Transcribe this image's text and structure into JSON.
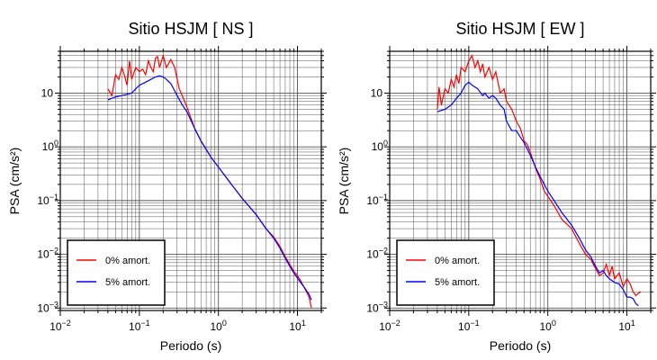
{
  "chart_data": [
    {
      "type": "line",
      "title": "Sitio HSJM [ NS ]",
      "xlabel": "Periodo (s)",
      "ylabel": "PSA (cm/s²)",
      "xscale": "log",
      "yscale": "log",
      "xlim": [
        0.01,
        20
      ],
      "ylim": [
        0.0009,
        60
      ],
      "x_ticks": [
        0.01,
        0.1,
        1,
        10
      ],
      "y_ticks": [
        0.001,
        0.01,
        0.1,
        1,
        10
      ],
      "grid": true,
      "legend_position": "bottom-left",
      "series": [
        {
          "name": "0% amort.",
          "color": "#ff0000",
          "points": [
            [
              0.04,
              12
            ],
            [
              0.045,
              9
            ],
            [
              0.05,
              22
            ],
            [
              0.055,
              18
            ],
            [
              0.06,
              30
            ],
            [
              0.065,
              21
            ],
            [
              0.07,
              14
            ],
            [
              0.075,
              40
            ],
            [
              0.08,
              18
            ],
            [
              0.09,
              30
            ],
            [
              0.1,
              25
            ],
            [
              0.11,
              28
            ],
            [
              0.12,
              22
            ],
            [
              0.13,
              40
            ],
            [
              0.14,
              30
            ],
            [
              0.15,
              25
            ],
            [
              0.16,
              45
            ],
            [
              0.17,
              48
            ],
            [
              0.18,
              30
            ],
            [
              0.2,
              50
            ],
            [
              0.22,
              30
            ],
            [
              0.25,
              42
            ],
            [
              0.28,
              30
            ],
            [
              0.32,
              12
            ],
            [
              0.36,
              8
            ],
            [
              0.4,
              5.5
            ],
            [
              0.5,
              2.2
            ],
            [
              0.6,
              1.3
            ],
            [
              0.8,
              0.65
            ],
            [
              1.0,
              0.42
            ],
            [
              1.5,
              0.19
            ],
            [
              2,
              0.11
            ],
            [
              3,
              0.055
            ],
            [
              4,
              0.03
            ],
            [
              5,
              0.021
            ],
            [
              6,
              0.014
            ],
            [
              7,
              0.009
            ],
            [
              8,
              0.0065
            ],
            [
              9,
              0.0048
            ],
            [
              10,
              0.004
            ],
            [
              11,
              0.0032
            ],
            [
              12,
              0.0025
            ],
            [
              13,
              0.002
            ],
            [
              14,
              0.0016
            ],
            [
              15,
              0.001
            ]
          ]
        },
        {
          "name": "5% amort.",
          "color": "#0000ff",
          "points": [
            [
              0.04,
              7.5
            ],
            [
              0.05,
              8.5
            ],
            [
              0.06,
              9
            ],
            [
              0.07,
              9.5
            ],
            [
              0.08,
              10
            ],
            [
              0.09,
              12
            ],
            [
              0.1,
              14
            ],
            [
              0.12,
              16
            ],
            [
              0.14,
              18
            ],
            [
              0.16,
              20
            ],
            [
              0.18,
              21
            ],
            [
              0.2,
              20
            ],
            [
              0.22,
              18
            ],
            [
              0.25,
              15
            ],
            [
              0.28,
              11
            ],
            [
              0.3,
              9
            ],
            [
              0.35,
              6
            ],
            [
              0.4,
              4.5
            ],
            [
              0.5,
              2.2
            ],
            [
              0.6,
              1.3
            ],
            [
              0.8,
              0.65
            ],
            [
              1.0,
              0.42
            ],
            [
              1.5,
              0.19
            ],
            [
              2,
              0.11
            ],
            [
              3,
              0.055
            ],
            [
              4,
              0.03
            ],
            [
              5,
              0.02
            ],
            [
              6,
              0.013
            ],
            [
              7,
              0.0085
            ],
            [
              8,
              0.006
            ],
            [
              9,
              0.0045
            ],
            [
              10,
              0.0036
            ],
            [
              12,
              0.0025
            ],
            [
              14,
              0.0018
            ],
            [
              15,
              0.0014
            ]
          ]
        }
      ]
    },
    {
      "type": "line",
      "title": "Sitio HSJM [ EW ]",
      "xlabel": "Periodo (s)",
      "ylabel": "PSA (cm/s²)",
      "xscale": "log",
      "yscale": "log",
      "xlim": [
        0.01,
        20
      ],
      "ylim": [
        0.0009,
        60
      ],
      "x_ticks": [
        0.01,
        0.1,
        1,
        10
      ],
      "y_ticks": [
        0.001,
        0.01,
        0.1,
        1,
        10
      ],
      "grid": true,
      "legend_position": "bottom-left",
      "series": [
        {
          "name": "0% amort.",
          "color": "#ff0000",
          "points": [
            [
              0.04,
              5
            ],
            [
              0.042,
              13
            ],
            [
              0.045,
              6
            ],
            [
              0.05,
              12
            ],
            [
              0.055,
              10
            ],
            [
              0.06,
              18
            ],
            [
              0.065,
              13
            ],
            [
              0.07,
              22
            ],
            [
              0.075,
              15
            ],
            [
              0.08,
              30
            ],
            [
              0.09,
              25
            ],
            [
              0.1,
              40
            ],
            [
              0.11,
              50
            ],
            [
              0.12,
              30
            ],
            [
              0.13,
              40
            ],
            [
              0.14,
              25
            ],
            [
              0.15,
              35
            ],
            [
              0.16,
              20
            ],
            [
              0.18,
              30
            ],
            [
              0.2,
              18
            ],
            [
              0.22,
              25
            ],
            [
              0.25,
              10
            ],
            [
              0.28,
              12
            ],
            [
              0.3,
              7
            ],
            [
              0.35,
              5
            ],
            [
              0.4,
              3
            ],
            [
              0.45,
              2.2
            ],
            [
              0.5,
              1.3
            ],
            [
              0.55,
              1.1
            ],
            [
              0.6,
              0.8
            ],
            [
              0.7,
              0.4
            ],
            [
              0.8,
              0.25
            ],
            [
              0.9,
              0.15
            ],
            [
              1.0,
              0.12
            ],
            [
              1.2,
              0.08
            ],
            [
              1.5,
              0.045
            ],
            [
              2,
              0.03
            ],
            [
              2.5,
              0.016
            ],
            [
              3,
              0.01
            ],
            [
              3.5,
              0.008
            ],
            [
              4,
              0.0055
            ],
            [
              4.5,
              0.004
            ],
            [
              5,
              0.0045
            ],
            [
              5.5,
              0.0065
            ],
            [
              6,
              0.004
            ],
            [
              6.5,
              0.006
            ],
            [
              7,
              0.0035
            ],
            [
              8,
              0.0045
            ],
            [
              9,
              0.0025
            ],
            [
              10,
              0.0035
            ],
            [
              11,
              0.0028
            ],
            [
              12,
              0.002
            ],
            [
              13,
              0.0017
            ],
            [
              14,
              0.0019
            ],
            [
              15,
              0.002
            ]
          ]
        },
        {
          "name": "5% amort.",
          "color": "#0000ff",
          "points": [
            [
              0.04,
              4.5
            ],
            [
              0.05,
              5
            ],
            [
              0.06,
              6
            ],
            [
              0.07,
              8
            ],
            [
              0.08,
              10
            ],
            [
              0.09,
              14
            ],
            [
              0.1,
              16
            ],
            [
              0.11,
              14
            ],
            [
              0.12,
              13
            ],
            [
              0.13,
              12
            ],
            [
              0.15,
              9
            ],
            [
              0.16,
              10
            ],
            [
              0.18,
              8
            ],
            [
              0.2,
              9
            ],
            [
              0.22,
              8
            ],
            [
              0.25,
              6
            ],
            [
              0.28,
              5
            ],
            [
              0.3,
              3
            ],
            [
              0.35,
              2
            ],
            [
              0.4,
              2
            ],
            [
              0.45,
              1.5
            ],
            [
              0.5,
              1.2
            ],
            [
              0.6,
              0.7
            ],
            [
              0.7,
              0.42
            ],
            [
              0.8,
              0.28
            ],
            [
              0.9,
              0.2
            ],
            [
              1.0,
              0.15
            ],
            [
              1.2,
              0.1
            ],
            [
              1.5,
              0.06
            ],
            [
              2,
              0.035
            ],
            [
              2.5,
              0.02
            ],
            [
              3,
              0.012
            ],
            [
              3.5,
              0.009
            ],
            [
              4,
              0.006
            ],
            [
              4.5,
              0.0045
            ],
            [
              5,
              0.005
            ],
            [
              5.5,
              0.004
            ],
            [
              6,
              0.0035
            ],
            [
              7,
              0.003
            ],
            [
              8,
              0.0028
            ],
            [
              9,
              0.0022
            ],
            [
              10,
              0.0016
            ],
            [
              11,
              0.0016
            ],
            [
              12,
              0.0015
            ],
            [
              13,
              0.0012
            ],
            [
              14,
              0.0011
            ]
          ]
        }
      ]
    }
  ]
}
